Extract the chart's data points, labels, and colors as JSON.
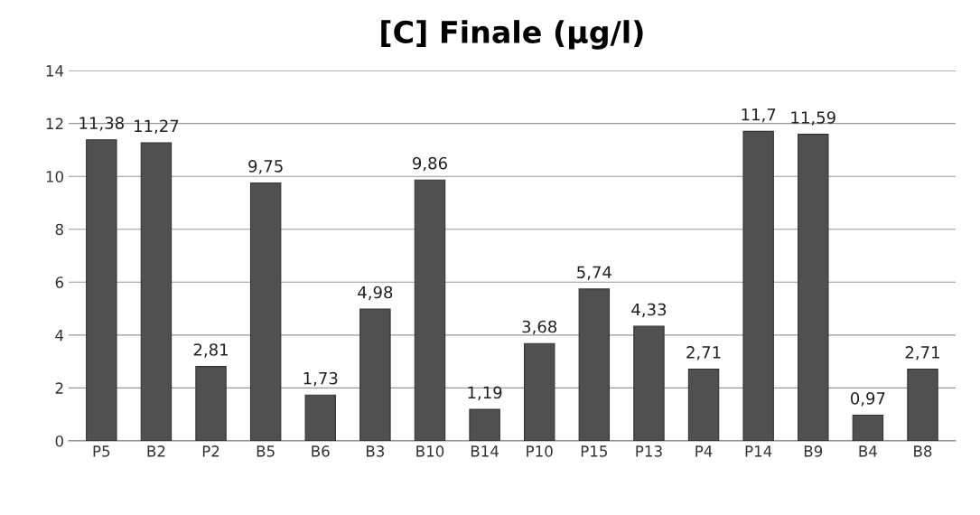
{
  "chart_data": {
    "type": "bar",
    "title": "[C] Finale (µg/l)",
    "categories": [
      "P5",
      "B2",
      "P2",
      "B5",
      "B6",
      "B3",
      "B10",
      "B14",
      "P10",
      "P15",
      "P13",
      "P4",
      "P14",
      "B9",
      "B4",
      "B8"
    ],
    "values": [
      11.38,
      11.27,
      2.81,
      9.75,
      1.73,
      4.98,
      9.86,
      1.19,
      3.68,
      5.74,
      4.33,
      2.71,
      11.7,
      11.59,
      0.97,
      2.71
    ],
    "value_labels": [
      "11,38",
      "11,27",
      "2,81",
      "9,75",
      "1,73",
      "4,98",
      "9,86",
      "1,19",
      "3,68",
      "5,74",
      "4,33",
      "2,71",
      "11,7",
      "11,59",
      "0,97",
      "2,71"
    ],
    "color": "#505050",
    "ylim": [
      0,
      14
    ],
    "yticks": [
      0,
      2,
      4,
      6,
      8,
      10,
      12,
      14
    ],
    "grid": "y",
    "legend": false
  }
}
